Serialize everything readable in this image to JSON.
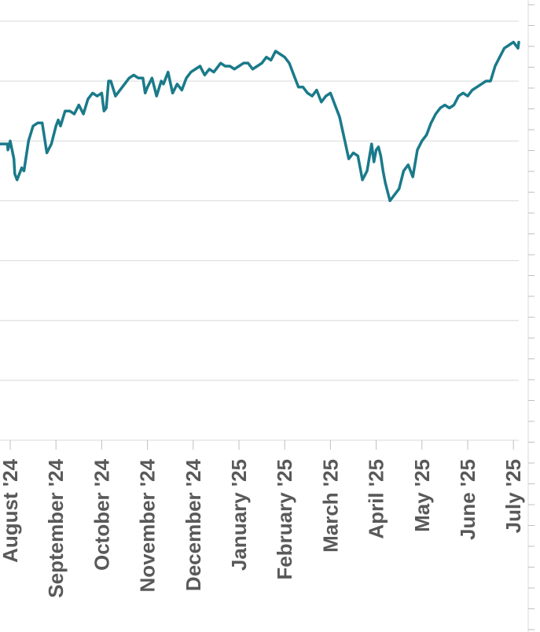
{
  "chart_data": {
    "type": "line",
    "title": "",
    "xlabel": "",
    "ylabel": "",
    "grid": true,
    "legend": "none",
    "line_color": "#1a7a8a",
    "x_tick_labels": [
      "August '24",
      "September '24",
      "October '24",
      "November '24",
      "December '24",
      "January '25",
      "February '25",
      "March '25",
      "April '25",
      "May '25",
      "June '25",
      "July '25"
    ],
    "x_range": [
      -0.3,
      11.18
    ],
    "y_range": [
      0,
      7
    ],
    "y_gridlines": [
      1,
      2,
      3,
      4,
      5,
      6,
      7
    ],
    "series": [
      {
        "x": [
          -0.3,
          -0.06,
          -0.05,
          0.0,
          0.08,
          0.1,
          0.15,
          0.25,
          0.3,
          0.4,
          0.5,
          0.6,
          0.7,
          0.8,
          0.9,
          1.0,
          1.05,
          1.1,
          1.2,
          1.3,
          1.4,
          1.5,
          1.6,
          1.7,
          1.8,
          1.9,
          2.0,
          2.05,
          2.1,
          2.15,
          2.2,
          2.3,
          2.4,
          2.5,
          2.6,
          2.7,
          2.8,
          2.9,
          2.95,
          3.0,
          3.1,
          3.2,
          3.3,
          3.35,
          3.45,
          3.55,
          3.65,
          3.75,
          3.85,
          3.95,
          4.05,
          4.15,
          4.25,
          4.35,
          4.45,
          4.5,
          4.6,
          4.7,
          4.8,
          4.9,
          5.0,
          5.1,
          5.2,
          5.3,
          5.4,
          5.5,
          5.6,
          5.7,
          5.8,
          5.9,
          6.0,
          6.1,
          6.2,
          6.3,
          6.4,
          6.5,
          6.6,
          6.7,
          6.8,
          6.9,
          7.0,
          7.1,
          7.2,
          7.3,
          7.4,
          7.5,
          7.6,
          7.7,
          7.8,
          7.9,
          7.95,
          8.0,
          8.05,
          8.1,
          8.15,
          8.2,
          8.3,
          8.4,
          8.5,
          8.6,
          8.7,
          8.8,
          8.9,
          9.0,
          9.1,
          9.2,
          9.3,
          9.4,
          9.5,
          9.6,
          9.7,
          9.8,
          9.9,
          10.0,
          10.1,
          10.2,
          10.3,
          10.4,
          10.5,
          10.6,
          10.7,
          10.8,
          10.9,
          11.0,
          11.1,
          11.18
        ],
        "y": [
          4.95,
          4.95,
          4.85,
          5.0,
          4.7,
          4.45,
          4.35,
          4.55,
          4.5,
          5.0,
          5.25,
          5.3,
          5.3,
          4.8,
          4.95,
          5.25,
          5.35,
          5.25,
          5.5,
          5.5,
          5.45,
          5.6,
          5.45,
          5.7,
          5.8,
          5.75,
          5.8,
          5.5,
          5.55,
          6.0,
          6.0,
          5.75,
          5.85,
          5.95,
          6.05,
          6.1,
          6.05,
          6.05,
          5.8,
          5.9,
          6.05,
          5.75,
          6.0,
          5.95,
          6.15,
          5.8,
          5.95,
          5.85,
          6.05,
          6.15,
          6.2,
          6.25,
          6.1,
          6.2,
          6.15,
          6.2,
          6.3,
          6.25,
          6.25,
          6.2,
          6.25,
          6.3,
          6.3,
          6.2,
          6.25,
          6.3,
          6.4,
          6.35,
          6.5,
          6.45,
          6.4,
          6.3,
          6.1,
          5.9,
          5.9,
          5.8,
          5.75,
          5.85,
          5.65,
          5.75,
          5.8,
          5.6,
          5.4,
          5.05,
          4.7,
          4.8,
          4.75,
          4.35,
          4.5,
          4.95,
          4.65,
          4.85,
          4.9,
          4.75,
          4.5,
          4.3,
          4.0,
          4.1,
          4.2,
          4.5,
          4.6,
          4.4,
          4.85,
          5.0,
          5.1,
          5.3,
          5.45,
          5.55,
          5.6,
          5.55,
          5.6,
          5.75,
          5.8,
          5.75,
          5.85,
          5.9,
          5.95,
          6.0,
          6.0,
          6.25,
          6.4,
          6.55,
          6.6,
          6.65,
          6.55,
          6.65
        ]
      }
    ]
  }
}
